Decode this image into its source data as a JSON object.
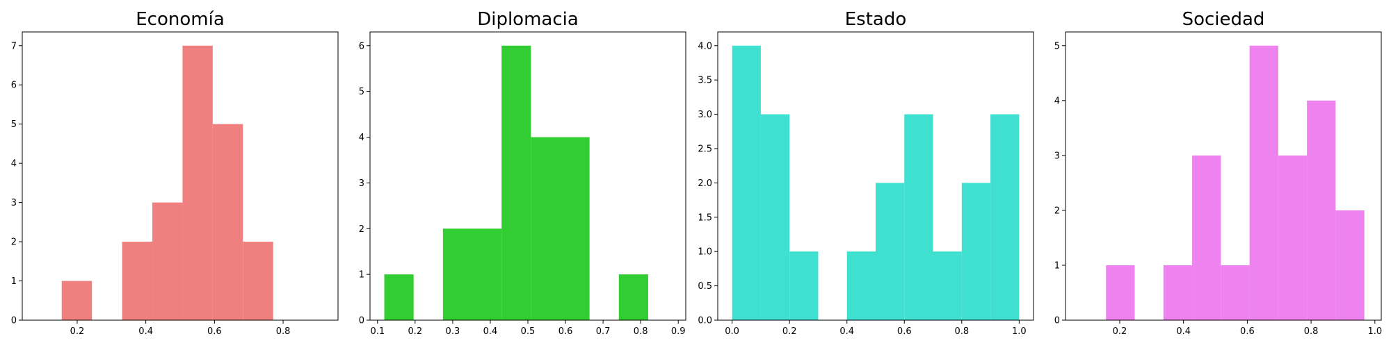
{
  "figure": {
    "background": "#ffffff"
  },
  "chart_data": [
    {
      "type": "bar",
      "title": "Economía",
      "color": "#f08080",
      "xlim": [
        0.04,
        0.96
      ],
      "ylim": [
        0,
        7.35
      ],
      "xticks": [
        0.2,
        0.4,
        0.6,
        0.8
      ],
      "yticks": [
        0,
        1,
        2,
        3,
        4,
        5,
        6,
        7
      ],
      "bins": [
        {
          "x0": 0.155,
          "x1": 0.243,
          "value": 1
        },
        {
          "x0": 0.243,
          "x1": 0.331,
          "value": 0
        },
        {
          "x0": 0.331,
          "x1": 0.419,
          "value": 2
        },
        {
          "x0": 0.419,
          "x1": 0.507,
          "value": 3
        },
        {
          "x0": 0.507,
          "x1": 0.595,
          "value": 7
        },
        {
          "x0": 0.595,
          "x1": 0.683,
          "value": 5
        },
        {
          "x0": 0.683,
          "x1": 0.771,
          "value": 2
        }
      ]
    },
    {
      "type": "bar",
      "title": "Diplomacia",
      "color": "#32cd32",
      "xlim": [
        0.08,
        0.92
      ],
      "ylim": [
        0,
        6.3
      ],
      "xticks": [
        0.1,
        0.2,
        0.3,
        0.4,
        0.5,
        0.6,
        0.7,
        0.8,
        0.9
      ],
      "yticks": [
        0,
        1,
        2,
        3,
        4,
        5,
        6
      ],
      "bins": [
        {
          "x0": 0.118,
          "x1": 0.196,
          "value": 1
        },
        {
          "x0": 0.196,
          "x1": 0.274,
          "value": 0
        },
        {
          "x0": 0.274,
          "x1": 0.352,
          "value": 2
        },
        {
          "x0": 0.352,
          "x1": 0.43,
          "value": 2
        },
        {
          "x0": 0.43,
          "x1": 0.508,
          "value": 6
        },
        {
          "x0": 0.508,
          "x1": 0.586,
          "value": 4
        },
        {
          "x0": 0.586,
          "x1": 0.664,
          "value": 4
        },
        {
          "x0": 0.664,
          "x1": 0.742,
          "value": 0
        },
        {
          "x0": 0.742,
          "x1": 0.82,
          "value": 1
        }
      ]
    },
    {
      "type": "bar",
      "title": "Estado",
      "color": "#40e0d0",
      "xlim": [
        -0.05,
        1.05
      ],
      "ylim": [
        0,
        4.2
      ],
      "xticks": [
        0.0,
        0.2,
        0.4,
        0.6,
        0.8,
        1.0
      ],
      "yticks": [
        0.0,
        0.5,
        1.0,
        1.5,
        2.0,
        2.5,
        3.0,
        3.5,
        4.0
      ],
      "bins": [
        {
          "x0": 0.0,
          "x1": 0.1,
          "value": 4
        },
        {
          "x0": 0.1,
          "x1": 0.2,
          "value": 3
        },
        {
          "x0": 0.2,
          "x1": 0.3,
          "value": 1
        },
        {
          "x0": 0.3,
          "x1": 0.4,
          "value": 0
        },
        {
          "x0": 0.4,
          "x1": 0.5,
          "value": 1
        },
        {
          "x0": 0.5,
          "x1": 0.6,
          "value": 2
        },
        {
          "x0": 0.6,
          "x1": 0.7,
          "value": 3
        },
        {
          "x0": 0.7,
          "x1": 0.8,
          "value": 1
        },
        {
          "x0": 0.8,
          "x1": 0.9,
          "value": 2
        },
        {
          "x0": 0.9,
          "x1": 1.0,
          "value": 3
        }
      ]
    },
    {
      "type": "bar",
      "title": "Sociedad",
      "color": "#ee82ee",
      "xlim": [
        0.03,
        1.02
      ],
      "ylim": [
        0,
        5.25
      ],
      "xticks": [
        0.2,
        0.4,
        0.6,
        0.8,
        1.0
      ],
      "yticks": [
        0,
        1,
        2,
        3,
        4,
        5
      ],
      "bins": [
        {
          "x0": 0.157,
          "x1": 0.247,
          "value": 1
        },
        {
          "x0": 0.247,
          "x1": 0.337,
          "value": 0
        },
        {
          "x0": 0.337,
          "x1": 0.427,
          "value": 1
        },
        {
          "x0": 0.427,
          "x1": 0.517,
          "value": 3
        },
        {
          "x0": 0.517,
          "x1": 0.607,
          "value": 1
        },
        {
          "x0": 0.607,
          "x1": 0.697,
          "value": 5
        },
        {
          "x0": 0.697,
          "x1": 0.787,
          "value": 3
        },
        {
          "x0": 0.787,
          "x1": 0.877,
          "value": 4
        },
        {
          "x0": 0.877,
          "x1": 0.967,
          "value": 2
        }
      ]
    }
  ]
}
